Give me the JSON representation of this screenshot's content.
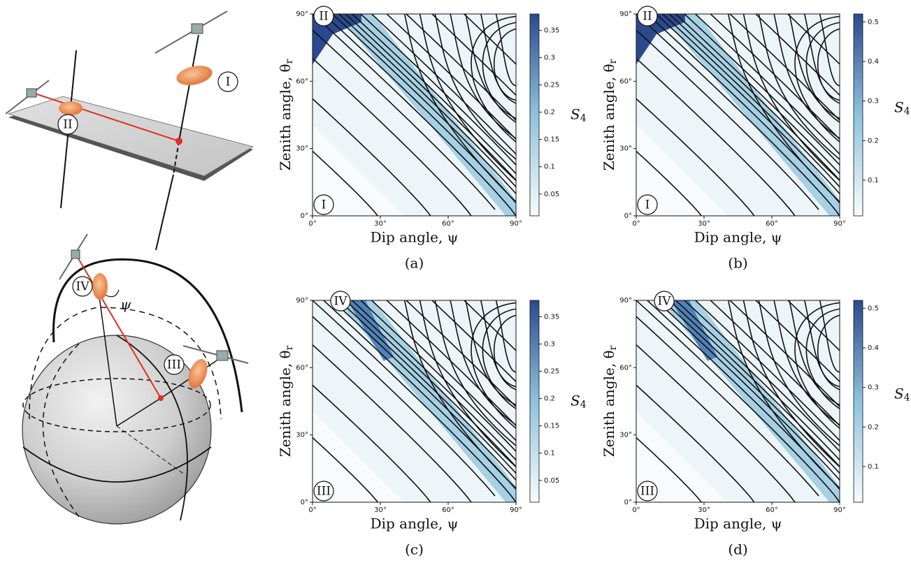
{
  "diagram": {
    "labels": [
      "I",
      "II",
      "IV",
      "III"
    ],
    "angle": "ψ"
  },
  "chart_data": [
    {
      "type": "contour",
      "caption": "(a)",
      "xlabel": "Dip angle, ψ",
      "ylabel": "Zenith angle, θ",
      "ylabel_sub": "r",
      "xlim": [
        0,
        90
      ],
      "ylim": [
        0,
        90
      ],
      "xticks": [
        {
          "value": 0,
          "label": "0°"
        },
        {
          "value": 30,
          "label": "30°"
        },
        {
          "value": 60,
          "label": "60°"
        },
        {
          "value": 90,
          "label": "90°"
        }
      ],
      "yticks": [
        {
          "value": 0,
          "label": "0°"
        },
        {
          "value": 30,
          "label": "30°"
        },
        {
          "value": 60,
          "label": "60°"
        },
        {
          "value": 90,
          "label": "90°"
        }
      ],
      "colorbar_label": "S",
      "colorbar_label_sub": "4",
      "clim": [
        0.01,
        0.38
      ],
      "cticks": [
        0.05,
        0.1,
        0.15,
        0.2,
        0.25,
        0.3,
        0.35
      ],
      "cmap": [
        "#f7fbfd",
        "#8ec3dd",
        "#2b4a8e"
      ],
      "region_top": "II",
      "region_bottom": "I"
    },
    {
      "type": "contour",
      "caption": "(b)",
      "xlabel": "Dip angle, ψ",
      "ylabel": "Zenith angle, θ",
      "ylabel_sub": "r",
      "xlim": [
        0,
        90
      ],
      "ylim": [
        0,
        90
      ],
      "xticks": [
        {
          "value": 0,
          "label": "0°"
        },
        {
          "value": 30,
          "label": "30°"
        },
        {
          "value": 60,
          "label": "60°"
        },
        {
          "value": 90,
          "label": "90°"
        }
      ],
      "yticks": [
        {
          "value": 0,
          "label": "0°"
        },
        {
          "value": 30,
          "label": "30°"
        },
        {
          "value": 60,
          "label": "60°"
        },
        {
          "value": 90,
          "label": "90°"
        }
      ],
      "colorbar_label": "S",
      "colorbar_label_sub": "4",
      "clim": [
        0.01,
        0.52
      ],
      "cticks": [
        0.1,
        0.2,
        0.3,
        0.4,
        0.5
      ],
      "cmap": [
        "#f7fbfd",
        "#8ec3dd",
        "#2b4a8e"
      ],
      "region_top": "II",
      "region_bottom": "I"
    },
    {
      "type": "contour",
      "caption": "(c)",
      "xlabel": "Dip angle, ψ",
      "ylabel": "Zenith angle, θ",
      "ylabel_sub": "r",
      "xlim": [
        0,
        90
      ],
      "ylim": [
        0,
        90
      ],
      "xticks": [
        {
          "value": 0,
          "label": "0°"
        },
        {
          "value": 30,
          "label": "30°"
        },
        {
          "value": 60,
          "label": "60°"
        },
        {
          "value": 90,
          "label": "90°"
        }
      ],
      "yticks": [
        {
          "value": 0,
          "label": "0°"
        },
        {
          "value": 30,
          "label": "30°"
        },
        {
          "value": 60,
          "label": "60°"
        },
        {
          "value": 90,
          "label": "90°"
        }
      ],
      "colorbar_label": "S",
      "colorbar_label_sub": "4",
      "clim": [
        0.01,
        0.38
      ],
      "cticks": [
        0.05,
        0.1,
        0.15,
        0.2,
        0.25,
        0.3,
        0.35
      ],
      "cmap": [
        "#f7fbfd",
        "#8ec3dd",
        "#2b4a8e"
      ],
      "region_top": "IV",
      "region_bottom": "III"
    },
    {
      "type": "contour",
      "caption": "(d)",
      "xlabel": "Dip angle, ψ",
      "ylabel": "Zenith angle, θ",
      "ylabel_sub": "r",
      "xlim": [
        0,
        90
      ],
      "ylim": [
        0,
        90
      ],
      "xticks": [
        {
          "value": 0,
          "label": "0°"
        },
        {
          "value": 30,
          "label": "30°"
        },
        {
          "value": 60,
          "label": "60°"
        },
        {
          "value": 90,
          "label": "90°"
        }
      ],
      "yticks": [
        {
          "value": 0,
          "label": "0°"
        },
        {
          "value": 30,
          "label": "30°"
        },
        {
          "value": 60,
          "label": "60°"
        },
        {
          "value": 90,
          "label": "90°"
        }
      ],
      "colorbar_label": "S",
      "colorbar_label_sub": "4",
      "clim": [
        0.01,
        0.52
      ],
      "cticks": [
        0.1,
        0.2,
        0.3,
        0.4,
        0.5
      ],
      "cmap": [
        "#f7fbfd",
        "#8ec3dd",
        "#2b4a8e"
      ],
      "region_top": "IV",
      "region_bottom": "III"
    }
  ]
}
